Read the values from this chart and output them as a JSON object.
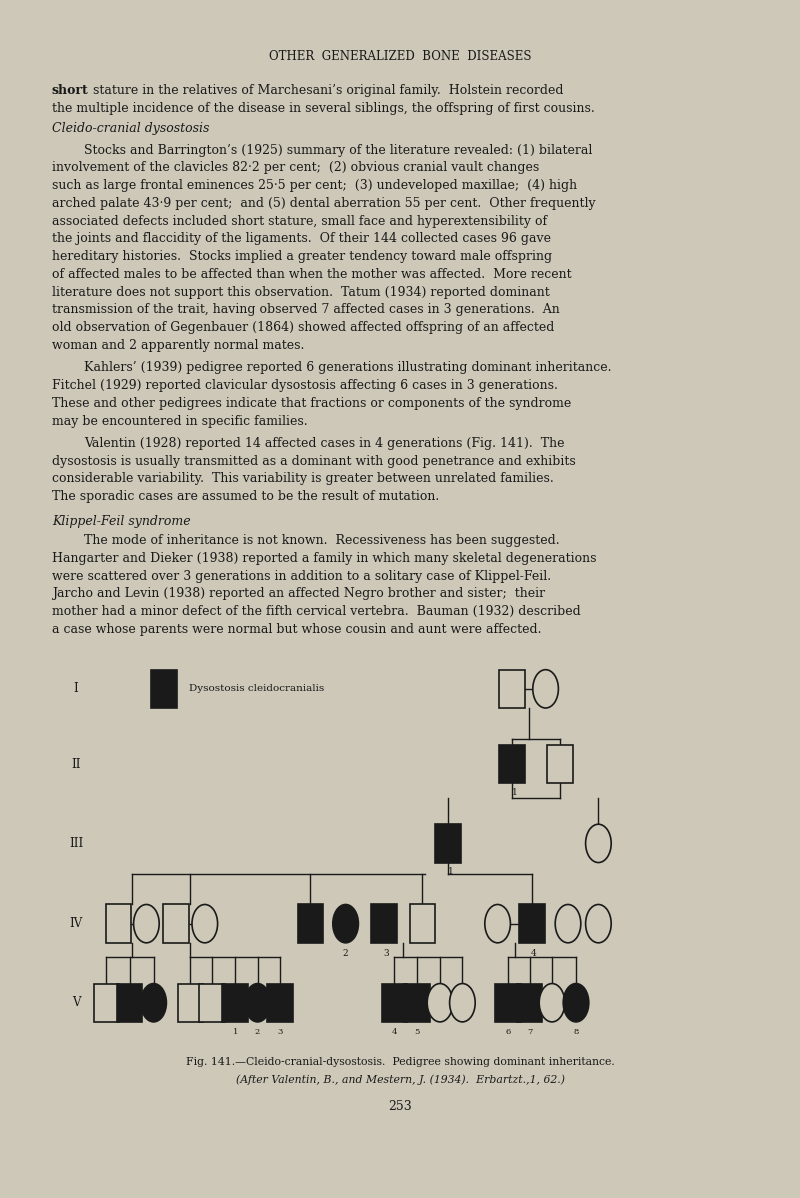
{
  "bg_color": "#d4cfc0",
  "page_bg": "#cdc8b8",
  "text_color": "#1a1a1a",
  "title": "OTHER  GENERALIZED  BONE  DISEASES",
  "title_fontsize": 8.5,
  "body_fontsize": 9.0,
  "fig_caption_line1": "Fig. 141.—Cleido-cranial-dysostosis.  Pedigree showing dominant inheritance.",
  "fig_caption_line2": "(After Valentin, B., and Mestern, J. (1934).  Erbartzt.,1, 62.)",
  "page_number": "253",
  "gen_labels": [
    "I",
    "II",
    "III",
    "IV",
    "V"
  ],
  "line_color": "#1a1a1a",
  "filled_color": "#1a1a1a",
  "symbol_size": 0.016
}
